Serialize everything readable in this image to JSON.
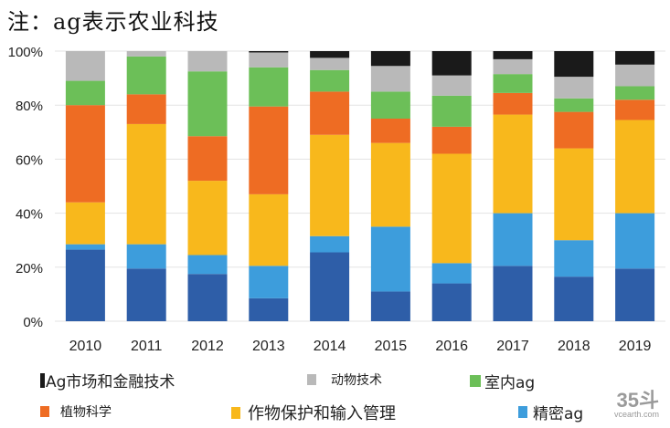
{
  "note": "注：ag表示农业科技",
  "chart_data": {
    "type": "bar",
    "stacked": true,
    "categories": [
      "2010",
      "2011",
      "2012",
      "2013",
      "2014",
      "2015",
      "2016",
      "2017",
      "2018",
      "2019"
    ],
    "ylim": [
      0,
      100
    ],
    "yticks": [
      "0%",
      "20%",
      "40%",
      "60%",
      "80%",
      "100%"
    ],
    "series": [
      {
        "name": "精密ag",
        "color": "#2e5ea8",
        "values": [
          26.5,
          19.5,
          17.5,
          8.5,
          25.5,
          11,
          14,
          20.5,
          16.5,
          19.5
        ]
      },
      {
        "name": "精密ag",
        "color": "#3d9ddc",
        "values": [
          2.0,
          9.0,
          7.0,
          12.0,
          6.0,
          24.0,
          7.5,
          19.5,
          13.5,
          20.5
        ]
      },
      {
        "name": "作物保护和输入管理",
        "color": "#f8b81c",
        "values": [
          15.5,
          44.5,
          27.5,
          26.5,
          37.5,
          31.0,
          40.5,
          36.5,
          34.0,
          34.5
        ]
      },
      {
        "name": "植物科学",
        "color": "#ee6c23",
        "values": [
          36.0,
          11.0,
          16.5,
          32.5,
          16.0,
          9.0,
          10.0,
          8.0,
          13.5,
          7.5
        ]
      },
      {
        "name": "室内ag",
        "color": "#6cbf58",
        "values": [
          9.0,
          14.0,
          24.0,
          14.5,
          8.0,
          10.0,
          11.5,
          7.0,
          5.0,
          5.0
        ]
      },
      {
        "name": "动物技术",
        "color": "#b9b9b9",
        "values": [
          11.0,
          2.0,
          7.5,
          5.5,
          4.5,
          9.5,
          7.5,
          5.5,
          8.0,
          8.0
        ]
      },
      {
        "name": "Ag市场和金融技术",
        "color": "#1a1a1a",
        "values": [
          0,
          0,
          0,
          0.5,
          2.5,
          5.5,
          9.0,
          3.0,
          9.5,
          5.0
        ]
      }
    ]
  },
  "legend": [
    {
      "label": "Ag市场和金融技术",
      "color": "#1a1a1a"
    },
    {
      "label": "动物技术",
      "color": "#b9b9b9"
    },
    {
      "label": "室内ag",
      "color": "#6cbf58"
    },
    {
      "label": "植物科学",
      "color": "#ee6c23"
    },
    {
      "label": "作物保护和输入管理",
      "color": "#f8b81c"
    },
    {
      "label": "精密ag",
      "color": "#3d9ddc"
    }
  ],
  "watermark": {
    "logo": "35斗",
    "url": "vcearth.com"
  }
}
